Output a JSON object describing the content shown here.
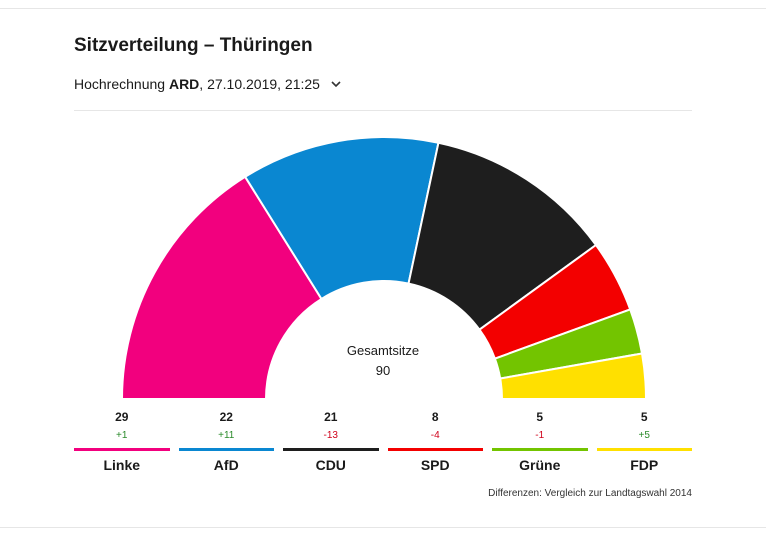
{
  "title": "Sitzverteilung – Thüringen",
  "subtitle": {
    "prefix": "Hochrechnung ",
    "source": "ARD",
    "datetime": ", 27.10.2019, 21:25",
    "dropdown_icon": "chevron-down-icon"
  },
  "center": {
    "label": "Gesamtsitze",
    "value": "90"
  },
  "note": "Differenzen: Vergleich zur Landtagswahl 2014",
  "chart_data": {
    "type": "pie",
    "subtype": "parliament-hemicycle",
    "total": 90,
    "series": [
      {
        "name": "Linke",
        "seats": 29,
        "diff": "+1",
        "color": "#f2007e"
      },
      {
        "name": "AfD",
        "seats": 22,
        "diff": "+11",
        "color": "#0a87d1"
      },
      {
        "name": "CDU",
        "seats": 21,
        "diff": "-13",
        "color": "#1e1e1e"
      },
      {
        "name": "SPD",
        "seats": 8,
        "diff": "-4",
        "color": "#f30000"
      },
      {
        "name": "Grüne",
        "seats": 5,
        "diff": "-1",
        "color": "#73c400"
      },
      {
        "name": "FDP",
        "seats": 5,
        "diff": "+5",
        "color": "#ffe000"
      }
    ]
  }
}
